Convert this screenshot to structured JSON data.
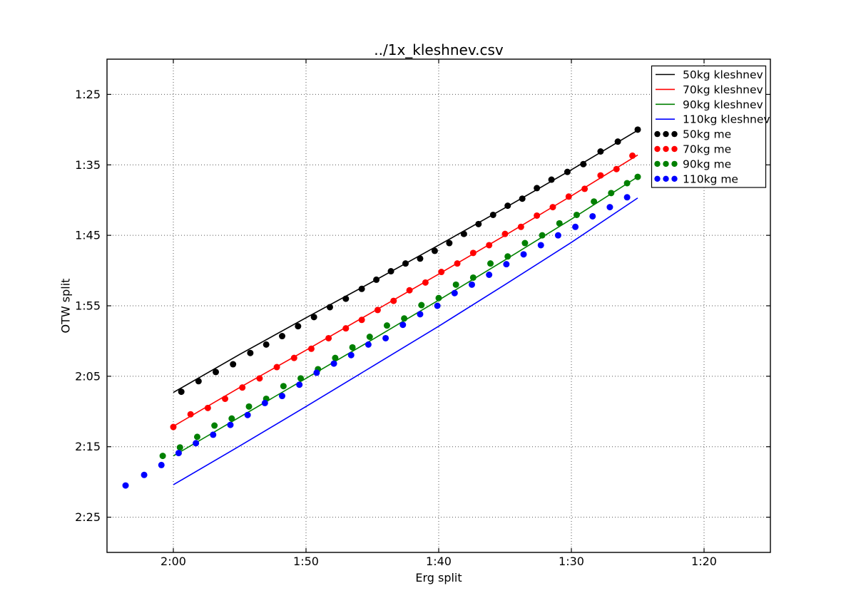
{
  "chart_data": {
    "type": "line",
    "title": "../1x_kleshnev.csv",
    "xlabel": "Erg split",
    "ylabel": "OTW split",
    "grid": true,
    "legend_position": "upper right",
    "x_range": [
      125,
      75
    ],
    "y_range": [
      80,
      150
    ],
    "x_ticks": [
      {
        "value": 120,
        "label": "2:00"
      },
      {
        "value": 110,
        "label": "1:50"
      },
      {
        "value": 100,
        "label": "1:40"
      },
      {
        "value": 90,
        "label": "1:30"
      },
      {
        "value": 80,
        "label": "1:20"
      }
    ],
    "y_ticks": [
      {
        "value": 85,
        "label": "1:25"
      },
      {
        "value": 95,
        "label": "1:35"
      },
      {
        "value": 105,
        "label": "1:45"
      },
      {
        "value": 115,
        "label": "1:55"
      },
      {
        "value": 125,
        "label": "2:05"
      },
      {
        "value": 135,
        "label": "2:15"
      },
      {
        "value": 145,
        "label": "2:25"
      }
    ],
    "series": [
      {
        "name": "50kg kleshnev",
        "mode": "line",
        "color": "#000000",
        "points": [
          [
            120,
            127.3
          ],
          [
            115,
            121.9
          ],
          [
            110,
            116.7
          ],
          [
            105,
            111.6
          ],
          [
            100,
            106.4
          ],
          [
            95,
            101.1
          ],
          [
            90,
            95.7
          ],
          [
            85,
            90.1
          ]
        ]
      },
      {
        "name": "70kg kleshnev",
        "mode": "line",
        "color": "#ff0000",
        "points": [
          [
            120,
            132.1
          ],
          [
            115,
            126.6
          ],
          [
            110,
            121.3
          ],
          [
            105,
            115.9
          ],
          [
            100,
            110.5
          ],
          [
            95,
            105.0
          ],
          [
            90,
            99.4
          ],
          [
            85,
            93.6
          ]
        ]
      },
      {
        "name": "90kg kleshnev",
        "mode": "line",
        "color": "#008000",
        "points": [
          [
            120,
            136.3
          ],
          [
            115,
            130.8
          ],
          [
            110,
            125.3
          ],
          [
            105,
            119.8
          ],
          [
            100,
            114.2
          ],
          [
            95,
            108.5
          ],
          [
            90,
            102.7
          ],
          [
            85,
            96.7
          ]
        ]
      },
      {
        "name": "110kg kleshnev",
        "mode": "line",
        "color": "#0000ff",
        "points": [
          [
            120,
            140.4
          ],
          [
            115,
            134.9
          ],
          [
            110,
            129.3
          ],
          [
            105,
            123.6
          ],
          [
            100,
            117.9
          ],
          [
            95,
            112.0
          ],
          [
            90,
            106.0
          ],
          [
            85,
            99.7
          ]
        ]
      },
      {
        "name": "50kg me",
        "mode": "markers",
        "color": "#000000",
        "points": [
          [
            119.4,
            127.2
          ],
          [
            118.1,
            125.7
          ],
          [
            116.8,
            124.4
          ],
          [
            115.5,
            123.3
          ],
          [
            114.2,
            121.7
          ],
          [
            113.0,
            120.5
          ],
          [
            111.8,
            119.3
          ],
          [
            110.6,
            117.9
          ],
          [
            109.4,
            116.6
          ],
          [
            108.2,
            115.2
          ],
          [
            107.0,
            114.0
          ],
          [
            105.8,
            112.6
          ],
          [
            104.7,
            111.3
          ],
          [
            103.6,
            110.1
          ],
          [
            102.5,
            109.0
          ],
          [
            101.4,
            108.3
          ],
          [
            100.3,
            107.2
          ],
          [
            99.2,
            106.1
          ],
          [
            98.1,
            104.8
          ],
          [
            97.0,
            103.4
          ],
          [
            95.9,
            102.1
          ],
          [
            94.8,
            100.8
          ],
          [
            93.7,
            99.8
          ],
          [
            92.6,
            98.3
          ],
          [
            91.5,
            97.1
          ],
          [
            90.3,
            96.0
          ],
          [
            89.1,
            94.9
          ],
          [
            87.8,
            93.1
          ],
          [
            86.5,
            91.7
          ],
          [
            85.0,
            90.0
          ]
        ]
      },
      {
        "name": "70kg me",
        "mode": "markers",
        "color": "#ff0000",
        "points": [
          [
            120.0,
            132.2
          ],
          [
            118.7,
            130.4
          ],
          [
            117.4,
            129.5
          ],
          [
            116.1,
            128.2
          ],
          [
            114.8,
            126.6
          ],
          [
            113.5,
            125.3
          ],
          [
            112.2,
            123.7
          ],
          [
            110.9,
            122.4
          ],
          [
            109.6,
            121.1
          ],
          [
            108.3,
            119.6
          ],
          [
            107.0,
            118.2
          ],
          [
            105.8,
            117.0
          ],
          [
            104.6,
            115.6
          ],
          [
            103.4,
            114.3
          ],
          [
            102.2,
            112.8
          ],
          [
            101.0,
            111.7
          ],
          [
            99.8,
            110.2
          ],
          [
            98.6,
            109.0
          ],
          [
            97.4,
            107.5
          ],
          [
            96.2,
            106.4
          ],
          [
            95.0,
            104.8
          ],
          [
            93.8,
            103.8
          ],
          [
            92.6,
            102.2
          ],
          [
            91.4,
            101.0
          ],
          [
            90.2,
            99.5
          ],
          [
            89.0,
            98.4
          ],
          [
            87.8,
            96.5
          ],
          [
            86.6,
            95.6
          ],
          [
            85.4,
            93.7
          ]
        ]
      },
      {
        "name": "90kg me",
        "mode": "markers",
        "color": "#008000",
        "points": [
          [
            120.8,
            136.3
          ],
          [
            119.5,
            135.1
          ],
          [
            118.2,
            133.6
          ],
          [
            116.9,
            132.0
          ],
          [
            115.6,
            131.0
          ],
          [
            114.3,
            129.3
          ],
          [
            113.0,
            128.2
          ],
          [
            111.7,
            126.4
          ],
          [
            110.4,
            125.3
          ],
          [
            109.1,
            124.0
          ],
          [
            107.8,
            122.4
          ],
          [
            106.5,
            120.9
          ],
          [
            105.2,
            119.4
          ],
          [
            103.9,
            117.8
          ],
          [
            102.6,
            116.8
          ],
          [
            101.3,
            114.9
          ],
          [
            100.0,
            113.9
          ],
          [
            98.7,
            112.0
          ],
          [
            97.4,
            111.0
          ],
          [
            96.1,
            109.0
          ],
          [
            94.8,
            108.0
          ],
          [
            93.5,
            106.1
          ],
          [
            92.2,
            105.0
          ],
          [
            90.9,
            103.3
          ],
          [
            89.6,
            102.1
          ],
          [
            88.3,
            100.2
          ],
          [
            87.0,
            99.0
          ],
          [
            85.8,
            97.6
          ],
          [
            85.0,
            96.7
          ]
        ]
      },
      {
        "name": "110kg me",
        "mode": "markers",
        "color": "#0000ff",
        "points": [
          [
            123.6,
            140.5
          ],
          [
            122.2,
            139.0
          ],
          [
            120.9,
            137.6
          ],
          [
            119.6,
            135.9
          ],
          [
            118.3,
            134.5
          ],
          [
            117.0,
            133.3
          ],
          [
            115.7,
            131.9
          ],
          [
            114.4,
            130.5
          ],
          [
            113.1,
            128.8
          ],
          [
            111.8,
            127.8
          ],
          [
            110.5,
            126.2
          ],
          [
            109.2,
            124.5
          ],
          [
            107.9,
            123.2
          ],
          [
            106.6,
            122.0
          ],
          [
            105.3,
            120.5
          ],
          [
            104.0,
            119.6
          ],
          [
            102.7,
            117.7
          ],
          [
            101.4,
            116.2
          ],
          [
            100.1,
            115.0
          ],
          [
            98.8,
            113.2
          ],
          [
            97.5,
            112.0
          ],
          [
            96.2,
            110.6
          ],
          [
            94.9,
            109.1
          ],
          [
            93.6,
            107.7
          ],
          [
            92.3,
            106.4
          ],
          [
            91.0,
            105.0
          ],
          [
            89.7,
            103.8
          ],
          [
            88.4,
            102.3
          ],
          [
            87.1,
            101.0
          ],
          [
            85.8,
            99.6
          ]
        ]
      }
    ]
  }
}
